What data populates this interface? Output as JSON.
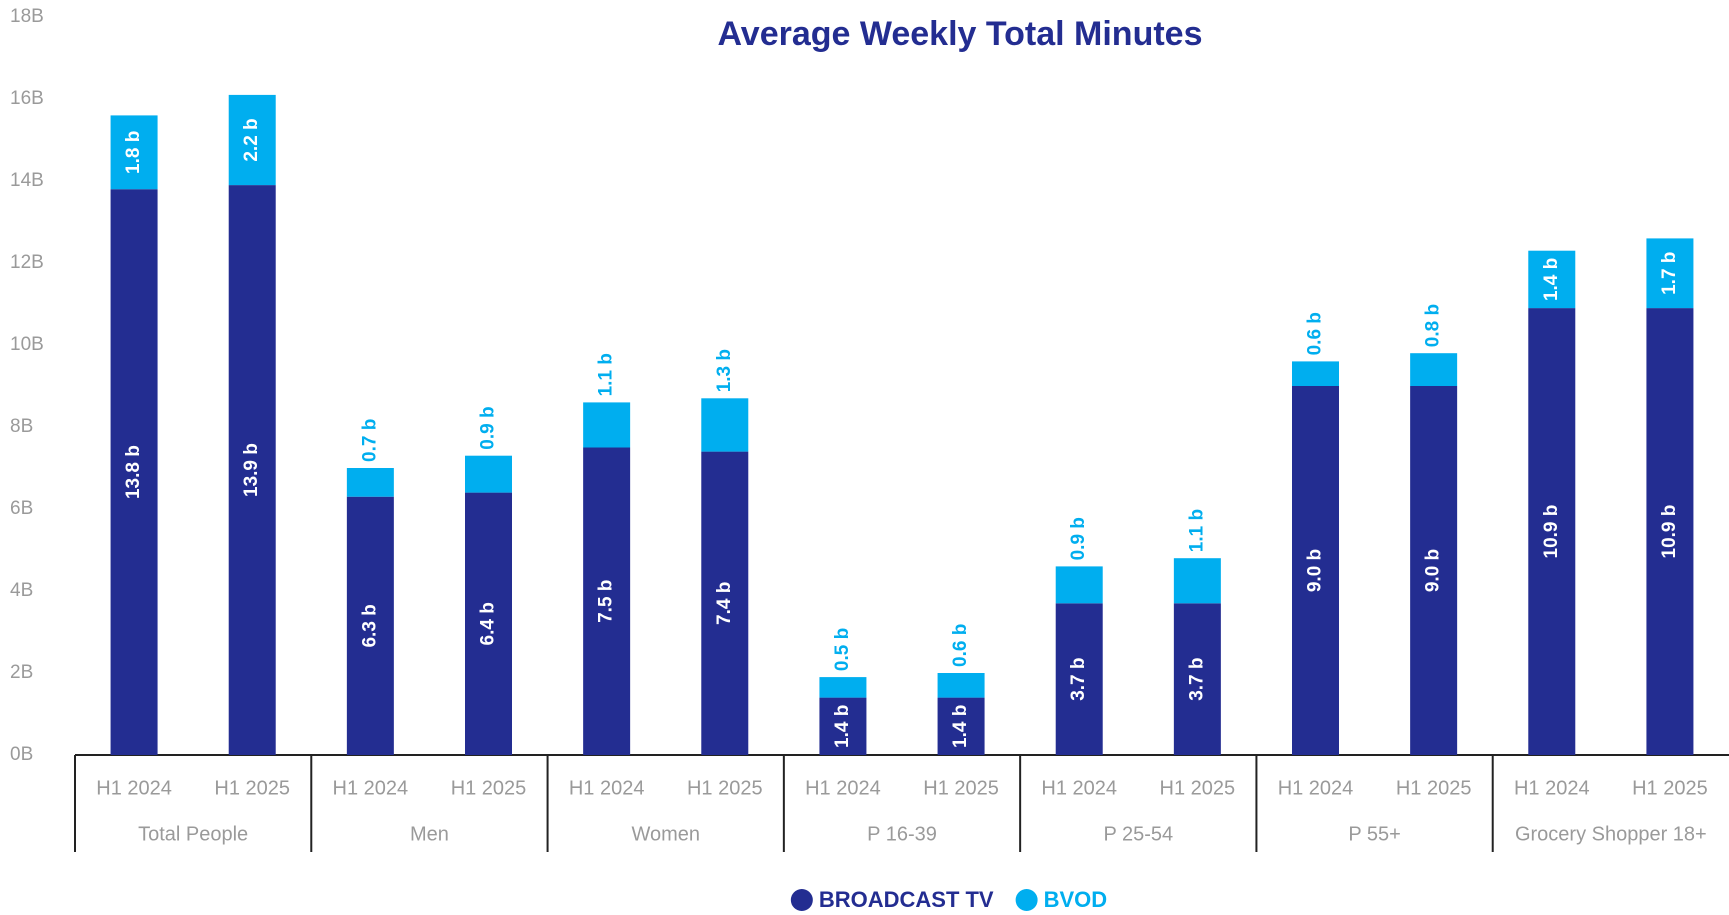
{
  "chart_data": {
    "type": "stacked-bar",
    "title": "Average Weekly Total Minutes",
    "categories": [
      "H1 2024",
      "H1 2025",
      "H1 2024",
      "H1 2025",
      "H1 2024",
      "H1 2025",
      "H1 2024",
      "H1 2025",
      "H1 2024",
      "H1 2025",
      "H1 2024",
      "H1 2025",
      "H1 2024",
      "H1 2025"
    ],
    "groups": [
      "Total People",
      "Men",
      "Women",
      "P 16-39",
      "P 25-54",
      "P 55+",
      "Grocery Shopper 18+"
    ],
    "series": [
      {
        "name": "BROADCAST TV",
        "color": "#232d91",
        "values": [
          13.8,
          13.9,
          6.3,
          6.4,
          7.5,
          7.4,
          1.4,
          1.4,
          3.7,
          3.7,
          9.0,
          9.0,
          10.9,
          10.9
        ],
        "value_labels": [
          "13.8 b",
          "13.9 b",
          "6.3 b",
          "6.4 b",
          "7.5 b",
          "7.4 b",
          "1.4 b",
          "1.4 b",
          "3.7 b",
          "3.7 b",
          "9.0 b",
          "9.0 b",
          "10.9 b",
          "10.9 b"
        ]
      },
      {
        "name": "BVOD",
        "color": "#00aeef",
        "values": [
          1.8,
          2.2,
          0.7,
          0.9,
          1.1,
          1.3,
          0.5,
          0.6,
          0.9,
          1.1,
          0.6,
          0.8,
          1.4,
          1.7
        ],
        "value_labels": [
          "1.8 b",
          "2.2 b",
          "0.7 b",
          "0.9 b",
          "1.1 b",
          "1.3 b",
          "0.5 b",
          "0.6 b",
          "0.9 b",
          "1.1 b",
          "0.6 b",
          "0.8 b",
          "1.4 b",
          "1.7 b"
        ]
      }
    ],
    "ylim": [
      0,
      18
    ],
    "yticks": [
      {
        "value": 0,
        "label": "0B"
      },
      {
        "value": 2,
        "label": "2B"
      },
      {
        "value": 4,
        "label": "4B"
      },
      {
        "value": 6,
        "label": "6B"
      },
      {
        "value": 8,
        "label": "8B"
      },
      {
        "value": 10,
        "label": "10B"
      },
      {
        "value": 12,
        "label": "12B"
      },
      {
        "value": 14,
        "label": "14B"
      },
      {
        "value": 16,
        "label": "16B"
      },
      {
        "value": 18,
        "label": "18B"
      }
    ],
    "grid": false,
    "legend": "bottom"
  }
}
